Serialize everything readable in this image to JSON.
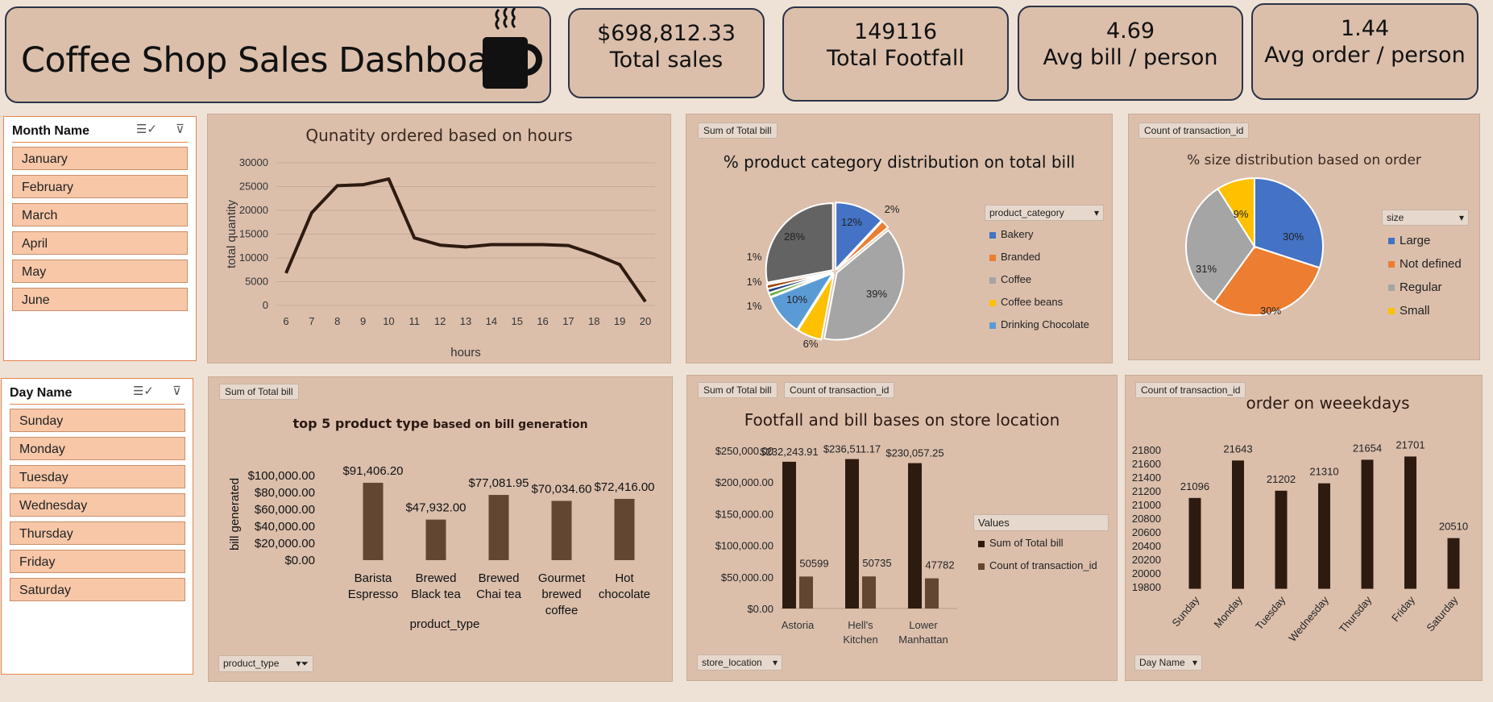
{
  "title": "Coffee Shop Sales Dashboard",
  "kpis": [
    {
      "value": "$698,812.33",
      "label": "Total sales"
    },
    {
      "value": "149116",
      "label": "Total Footfall"
    },
    {
      "value": "4.69",
      "label": "Avg bill / person"
    },
    {
      "value": "1.44",
      "label": "Avg order / person"
    }
  ],
  "slicers": {
    "month": {
      "header": "Month Name",
      "items": [
        "January",
        "February",
        "March",
        "April",
        "May",
        "June"
      ]
    },
    "day": {
      "header": "Day Name",
      "items": [
        "Sunday",
        "Monday",
        "Tuesday",
        "Wednesday",
        "Thursday",
        "Friday",
        "Saturday"
      ]
    }
  },
  "icons": {
    "coffee": "coffee-cup-icon",
    "multiselect": "multi-select-icon",
    "clear_filter": "clear-filter-icon",
    "dropdown": "dropdown-arrow-icon"
  },
  "colors": {
    "panel": "#dbbfab",
    "dark_brown": "#2e1b10",
    "mid_brown": "#634632",
    "slicer_item": "#f7c7a8"
  },
  "chart_data": [
    {
      "type": "line",
      "title": "Qunatity ordered based on hours",
      "xlabel": "hours",
      "ylabel": "total quantity",
      "x": [
        6,
        7,
        8,
        9,
        10,
        11,
        12,
        13,
        14,
        15,
        16,
        17,
        18,
        19,
        20
      ],
      "y": [
        6800,
        19500,
        25200,
        25400,
        26600,
        14200,
        12700,
        12300,
        12800,
        12800,
        12800,
        12600,
        10800,
        8600,
        800
      ],
      "ylim": [
        0,
        30000
      ],
      "yticks": [
        "30000",
        "25000",
        "20000",
        "15000",
        "10000",
        "5000",
        "0"
      ],
      "grid": true
    },
    {
      "type": "pie",
      "tag": "Sum of Total bill",
      "title": "% product category distribution on total bill",
      "legend_title": "product_category",
      "legend": [
        "Bakery",
        "Branded",
        "Coffee",
        "Coffee beans",
        "Drinking Chocolate"
      ],
      "slices": [
        {
          "label": "12%",
          "value": 12,
          "color": "#4472c4"
        },
        {
          "label": "2%",
          "value": 2,
          "color": "#ed7d31"
        },
        {
          "label": "39%",
          "value": 39,
          "color": "#a5a5a5"
        },
        {
          "label": "6%",
          "value": 6,
          "color": "#ffc000"
        },
        {
          "label": "10%",
          "value": 10,
          "color": "#5b9bd5"
        },
        {
          "label": "1%",
          "value": 1,
          "color": "#70ad47"
        },
        {
          "label": "1%",
          "value": 1,
          "color": "#264478"
        },
        {
          "label": "1%",
          "value": 1,
          "color": "#9e480e"
        },
        {
          "label": "28%",
          "value": 28,
          "color": "#636363"
        }
      ]
    },
    {
      "type": "pie",
      "tag": "Count of transaction_id",
      "title": "% size distribution based on order",
      "legend_title": "size",
      "slices": [
        {
          "label": "30%",
          "name": "Large",
          "value": 30,
          "color": "#4472c4"
        },
        {
          "label": "30%",
          "name": "Not defined",
          "value": 30,
          "color": "#ed7d31"
        },
        {
          "label": "31%",
          "name": "Regular",
          "value": 31,
          "color": "#a5a5a5"
        },
        {
          "label": "9%",
          "name": "Small",
          "value": 9,
          "color": "#ffc000"
        }
      ]
    },
    {
      "type": "bar",
      "tag": "Sum of Total bill",
      "title_bold": "top 5 product type",
      "title_rest": "based on bill generation",
      "xlabel": "product_type",
      "ylabel": "bill generated",
      "categories": [
        [
          "Barista",
          "Espresso"
        ],
        [
          "Brewed",
          "Black tea"
        ],
        [
          "Brewed",
          "Chai tea"
        ],
        [
          "Gourmet",
          "brewed",
          "coffee"
        ],
        [
          "Hot",
          "chocolate"
        ]
      ],
      "values": [
        91406.2,
        47932.0,
        77081.95,
        70034.6,
        72416.0
      ],
      "value_labels": [
        "$91,406.20",
        "$47,932.00",
        "$77,081.95",
        "$70,034.60",
        "$72,416.00"
      ],
      "yticks": [
        "$100,000.00",
        "$80,000.00",
        "$60,000.00",
        "$40,000.00",
        "$20,000.00",
        "$0.00"
      ],
      "ylim": [
        0,
        100000
      ],
      "filter_tag": "product_type"
    },
    {
      "type": "bar",
      "tags": [
        "Sum of Total bill",
        "Count of transaction_id"
      ],
      "title": "Footfall and bill bases on store location",
      "categories": [
        [
          "Astoria"
        ],
        [
          "Hell's",
          "Kitchen"
        ],
        [
          "Lower",
          "Manhattan"
        ]
      ],
      "series": [
        {
          "name": "Sum of Total bill",
          "values": [
            232243.91,
            236511.17,
            230057.25
          ],
          "labels": [
            "$232,243.91",
            "$236,511.17",
            "$230,057.25"
          ],
          "color": "#2e1b10"
        },
        {
          "name": "Count of transaction_id",
          "values": [
            50599,
            50735,
            47782
          ],
          "labels": [
            "50599",
            "50735",
            "47782"
          ],
          "color": "#634632"
        }
      ],
      "yticks": [
        "$250,000.00",
        "$200,000.00",
        "$150,000.00",
        "$100,000.00",
        "$50,000.00",
        "$0.00"
      ],
      "ylim": [
        0,
        250000
      ],
      "legend_title": "Values",
      "filter_tag": "store_location"
    },
    {
      "type": "bar",
      "tag": "Count of transaction_id",
      "title": "order on weeekdays",
      "categories": [
        "Sunday",
        "Monday",
        "Tuesday",
        "Wednesday",
        "Thursday",
        "Friday",
        "Saturday"
      ],
      "values": [
        21096,
        21643,
        21202,
        21310,
        21654,
        21701,
        20510
      ],
      "yticks": [
        "21800",
        "21600",
        "21400",
        "21200",
        "21000",
        "20800",
        "20600",
        "20400",
        "20200",
        "20000",
        "19800"
      ],
      "ylim": [
        19800,
        21900
      ],
      "filter_tag": "Day Name"
    }
  ]
}
